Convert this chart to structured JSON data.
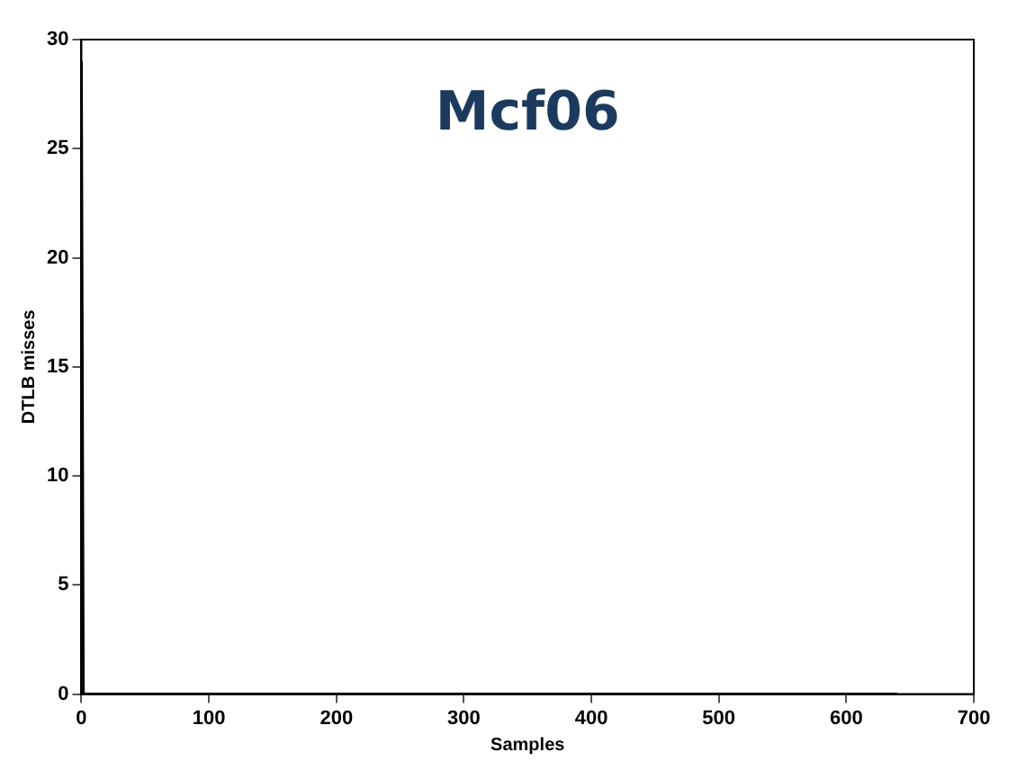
{
  "chart_data": {
    "type": "line",
    "title": "Mcf06",
    "xlabel": "Samples",
    "ylabel": "DTLB misses",
    "x": [
      0,
      1.5,
      640
    ],
    "values": [
      29,
      0,
      0
    ],
    "color": "#000000",
    "xlim": [
      0,
      700
    ],
    "xticks": [
      0,
      100,
      200,
      300,
      400,
      500,
      600,
      700
    ],
    "ylim": [
      0,
      30
    ],
    "yticks": [
      0,
      5,
      10,
      15,
      20,
      25,
      30
    ],
    "grid": false,
    "legend": false,
    "marker": "none",
    "line_style": "solid"
  }
}
